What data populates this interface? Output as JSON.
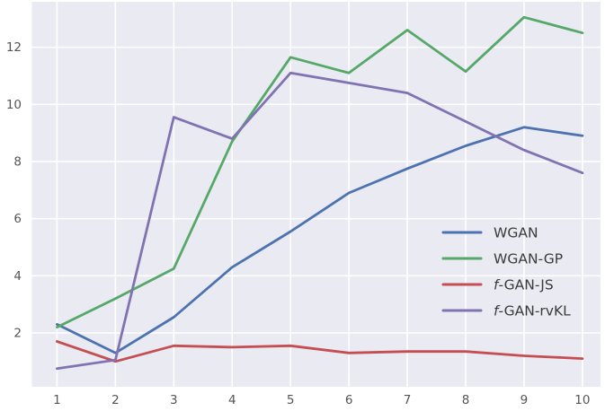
{
  "chart_data": {
    "type": "line",
    "title": "",
    "xlabel": "",
    "ylabel": "",
    "x": [
      1,
      2,
      3,
      4,
      5,
      6,
      7,
      8,
      9,
      10
    ],
    "series": [
      {
        "name": "WGAN",
        "color": "#4C72B0",
        "legend": {
          "italic": "",
          "text": "WGAN"
        },
        "values": [
          2.3,
          1.3,
          2.55,
          4.3,
          5.55,
          6.9,
          7.75,
          8.55,
          9.2,
          8.9
        ]
      },
      {
        "name": "WGAN-GP",
        "color": "#55A868",
        "legend": {
          "italic": "",
          "text": "WGAN-GP"
        },
        "values": [
          2.2,
          3.2,
          4.25,
          8.7,
          11.65,
          11.1,
          12.6,
          11.15,
          13.05,
          12.5
        ]
      },
      {
        "name": "f-GAN-JS",
        "color": "#C44E52",
        "legend": {
          "italic": "f",
          "text": "-GAN-JS"
        },
        "values": [
          1.7,
          1.0,
          1.55,
          1.5,
          1.55,
          1.3,
          1.35,
          1.35,
          1.2,
          1.1
        ]
      },
      {
        "name": "f-GAN-rvKL",
        "color": "#8172B2",
        "legend": {
          "italic": "f",
          "text": "-GAN-rvKL"
        },
        "values": [
          0.75,
          1.05,
          9.55,
          8.8,
          11.1,
          10.75,
          10.4,
          9.4,
          8.4,
          7.6
        ]
      }
    ],
    "xticks": {
      "values": [
        1,
        2,
        3,
        4,
        5,
        6,
        7,
        8,
        9,
        10
      ],
      "labels": [
        "1",
        "2",
        "3",
        "4",
        "5",
        "6",
        "7",
        "8",
        "9",
        "10"
      ]
    },
    "yticks": {
      "values": [
        2,
        4,
        6,
        8,
        10,
        12
      ],
      "labels": [
        "2",
        "4",
        "6",
        "8",
        "10",
        "12"
      ]
    },
    "xlim": [
      0.57,
      10.31
    ],
    "ylim": [
      0.115,
      13.59
    ],
    "grid": true,
    "legend_position": "center right"
  },
  "style": {
    "axes_background": "#EAEAF2",
    "grid_color": "#FFFFFF",
    "tick_label_color": "#555555",
    "legend_text_color": "#3a3a3a",
    "figure_background": "#FFFFFF"
  }
}
